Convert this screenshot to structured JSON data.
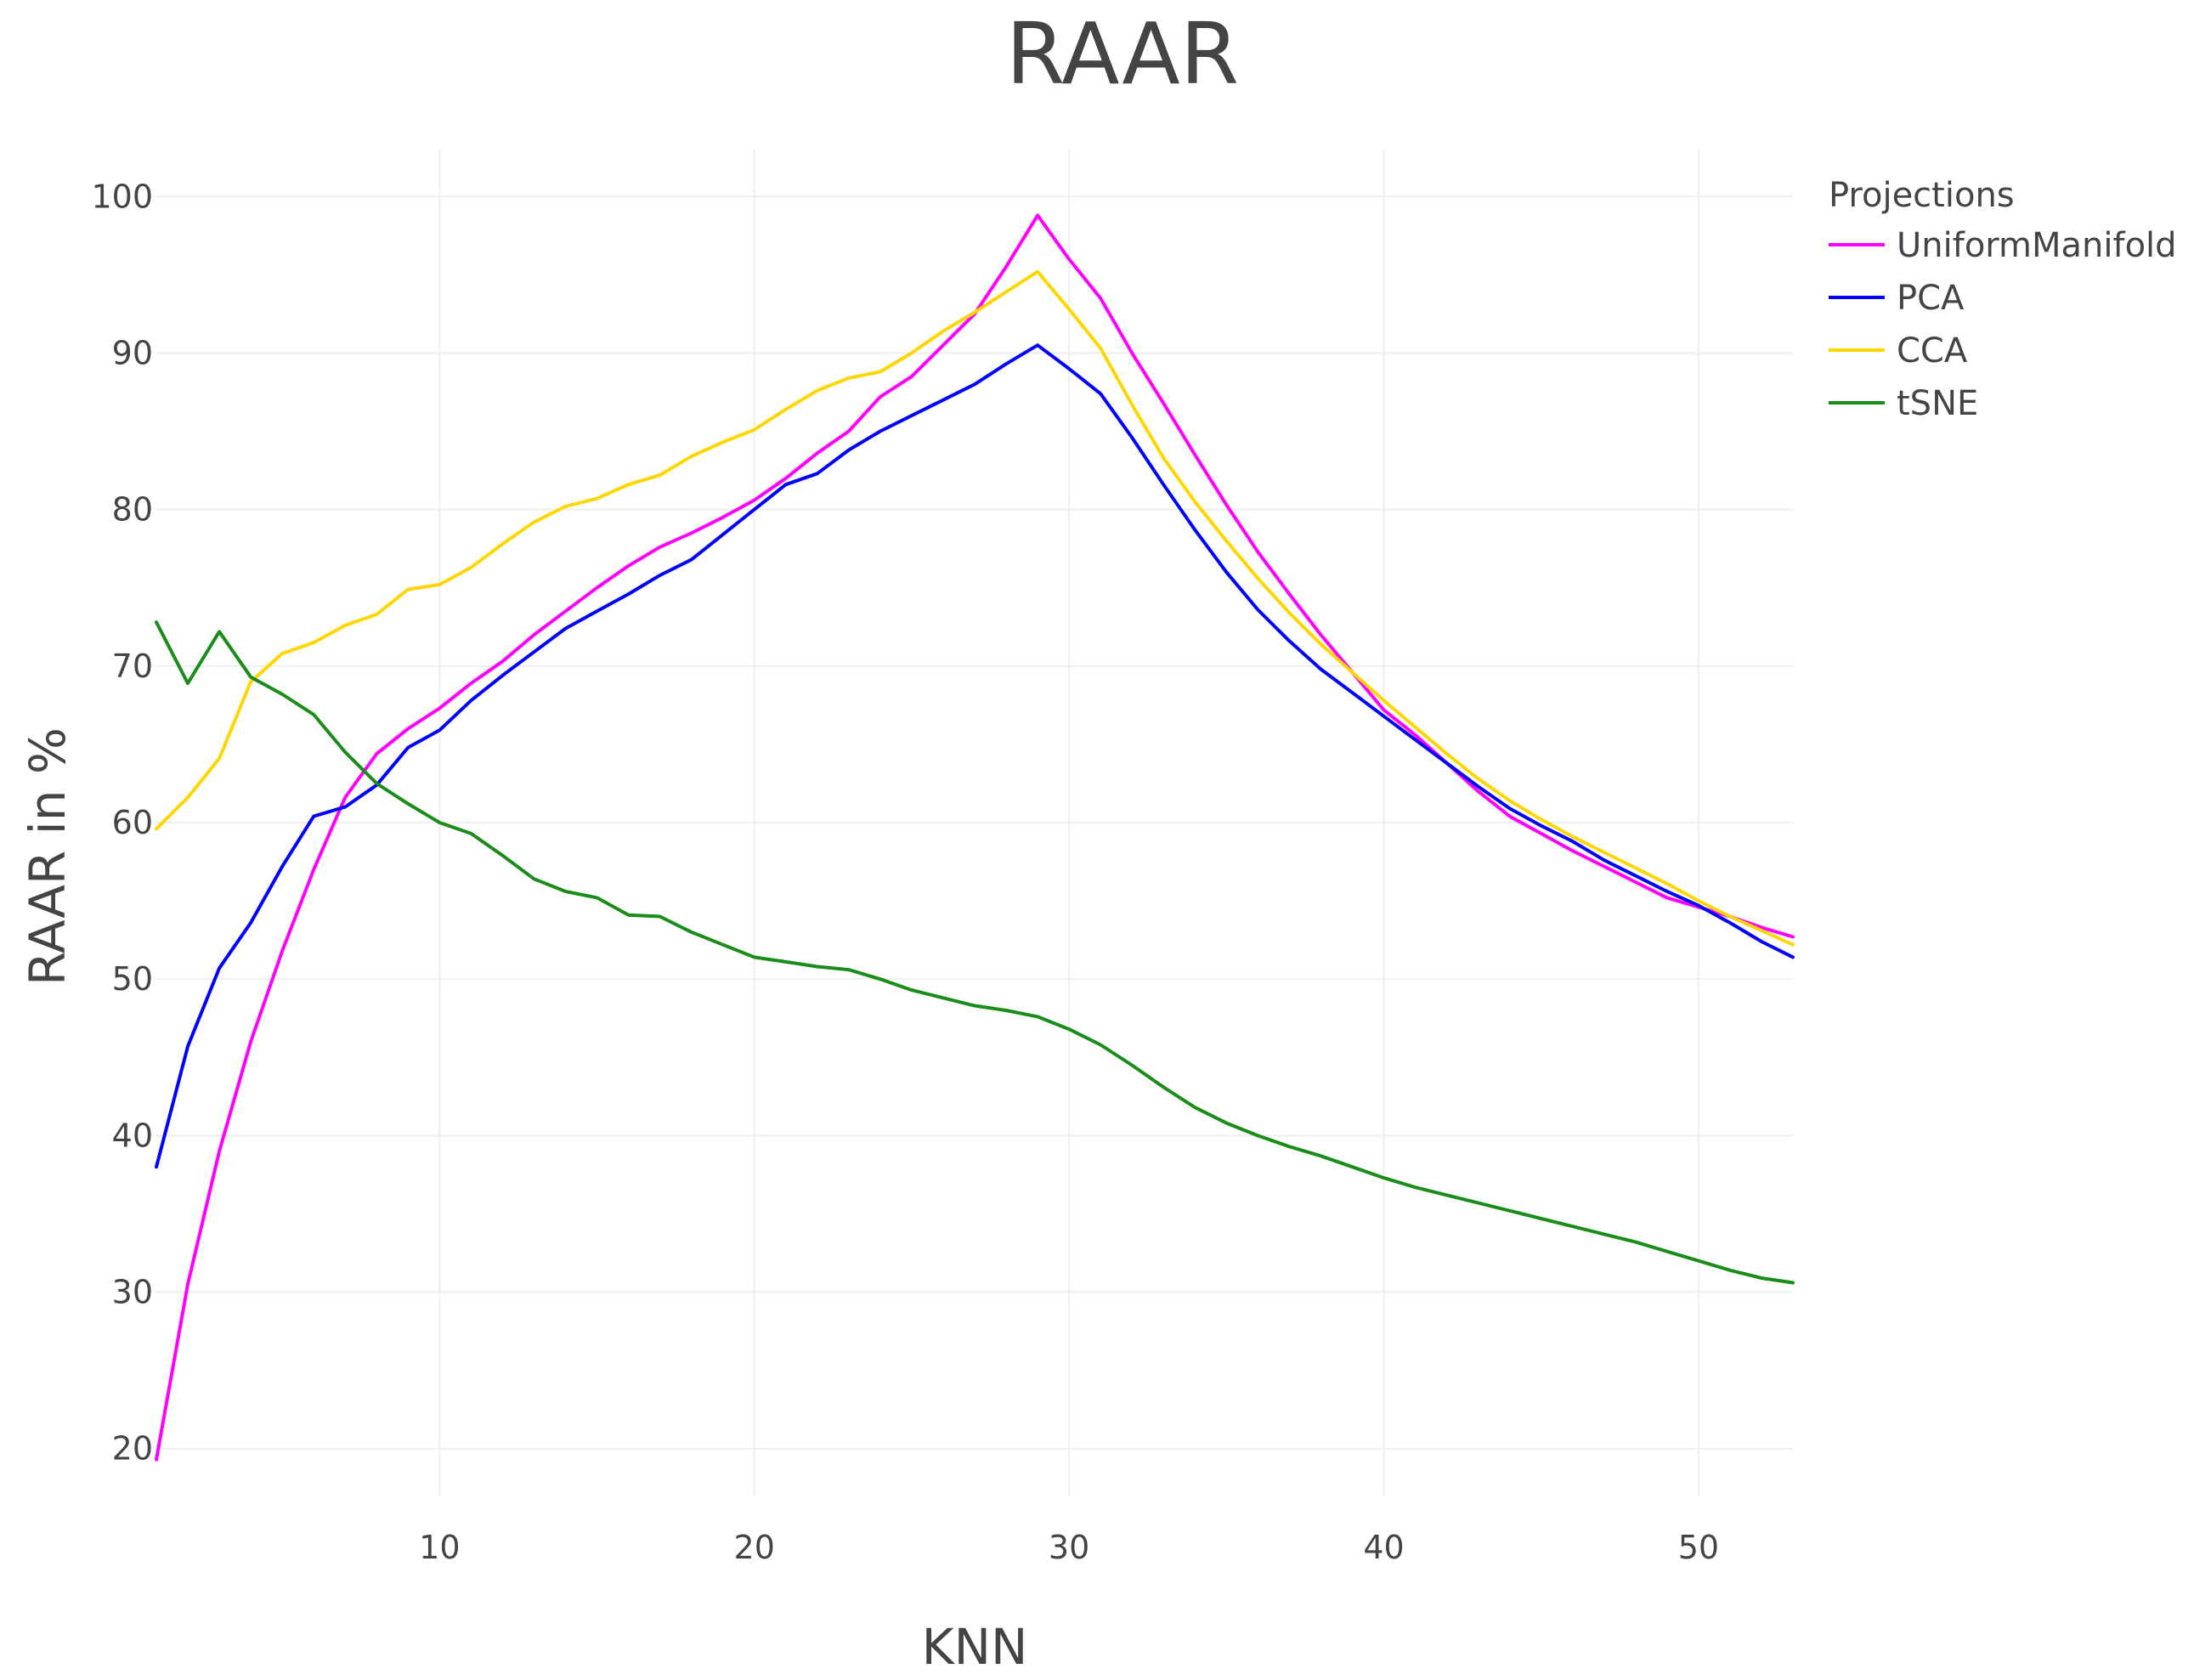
{
  "chart_data": {
    "type": "line",
    "title": "RAAR",
    "xlabel": "KNN",
    "ylabel": "RAAR in %",
    "xlim": [
      1,
      53
    ],
    "ylim": [
      17,
      103
    ],
    "x_ticks": [
      10,
      20,
      30,
      40,
      50
    ],
    "y_ticks": [
      20,
      30,
      40,
      50,
      60,
      70,
      80,
      90,
      100
    ],
    "grid": true,
    "legend": {
      "title": "Projections",
      "position": "top-right"
    },
    "x": [
      1,
      2,
      3,
      4,
      5,
      6,
      7,
      8,
      9,
      10,
      11,
      12,
      13,
      14,
      15,
      16,
      17,
      18,
      19,
      20,
      21,
      22,
      23,
      24,
      25,
      26,
      27,
      28,
      29,
      30,
      31,
      32,
      33,
      34,
      35,
      36,
      37,
      38,
      39,
      40,
      41,
      42,
      43,
      44,
      45,
      46,
      47,
      48,
      49,
      50,
      51,
      52,
      53
    ],
    "series": [
      {
        "name": "UniformManifold",
        "color": "#ff00ff",
        "values": [
          19.3,
          30.5,
          39.0,
          46.0,
          51.8,
          57.0,
          61.6,
          64.4,
          66.0,
          67.3,
          68.9,
          70.3,
          72.0,
          73.5,
          75.0,
          76.4,
          77.6,
          78.5,
          79.5,
          80.6,
          82.0,
          83.6,
          85.0,
          87.2,
          88.5,
          90.5,
          92.5,
          95.5,
          98.8,
          96.0,
          93.5,
          90.0,
          86.8,
          83.5,
          80.3,
          77.3,
          74.6,
          72.0,
          69.6,
          67.2,
          65.6,
          63.8,
          62.0,
          60.4,
          59.3,
          58.2,
          57.2,
          56.2,
          55.2,
          54.6,
          54.0,
          53.3,
          52.7
        ]
      },
      {
        "name": "PCA",
        "color": "#0000ff",
        "values": [
          38.0,
          45.7,
          50.7,
          53.6,
          57.2,
          60.4,
          61.0,
          62.4,
          64.8,
          65.9,
          67.8,
          69.4,
          70.9,
          72.4,
          73.5,
          74.6,
          75.8,
          76.8,
          78.4,
          80.0,
          81.6,
          82.3,
          83.8,
          85.0,
          86.0,
          87.0,
          88.0,
          89.3,
          90.5,
          89.0,
          87.4,
          84.6,
          81.6,
          78.7,
          76.0,
          73.6,
          71.6,
          69.8,
          68.3,
          66.8,
          65.3,
          63.8,
          62.3,
          60.9,
          59.8,
          58.8,
          57.6,
          56.6,
          55.6,
          54.7,
          53.6,
          52.4,
          51.4
        ]
      },
      {
        "name": "CCA",
        "color": "#ffd700",
        "values": [
          59.6,
          61.6,
          64.1,
          69.0,
          70.8,
          71.5,
          72.6,
          73.3,
          74.9,
          75.2,
          76.3,
          77.8,
          79.2,
          80.2,
          80.7,
          81.6,
          82.2,
          83.4,
          84.3,
          85.1,
          86.4,
          87.6,
          88.4,
          88.8,
          90.0,
          91.4,
          92.6,
          93.9,
          95.2,
          92.8,
          90.3,
          86.7,
          83.3,
          80.5,
          78.0,
          75.6,
          73.4,
          71.4,
          69.6,
          67.8,
          66.1,
          64.4,
          62.8,
          61.4,
          60.2,
          59.1,
          58.1,
          57.1,
          56.1,
          55.0,
          54.0,
          53.1,
          52.2
        ]
      },
      {
        "name": "tSNE",
        "color": "#1a8c1a",
        "values": [
          72.8,
          68.9,
          72.2,
          69.3,
          68.2,
          66.9,
          64.5,
          62.5,
          61.2,
          60.0,
          59.3,
          57.9,
          56.4,
          55.6,
          55.2,
          54.1,
          54.0,
          53.0,
          52.2,
          51.4,
          51.1,
          50.8,
          50.6,
          50.0,
          49.3,
          48.8,
          48.3,
          48.0,
          47.6,
          46.8,
          45.8,
          44.5,
          43.1,
          41.8,
          40.8,
          40.0,
          39.3,
          38.7,
          38.0,
          37.3,
          36.7,
          36.2,
          35.7,
          35.2,
          34.7,
          34.2,
          33.7,
          33.2,
          32.6,
          32.0,
          31.4,
          30.9,
          30.6
        ]
      }
    ]
  }
}
